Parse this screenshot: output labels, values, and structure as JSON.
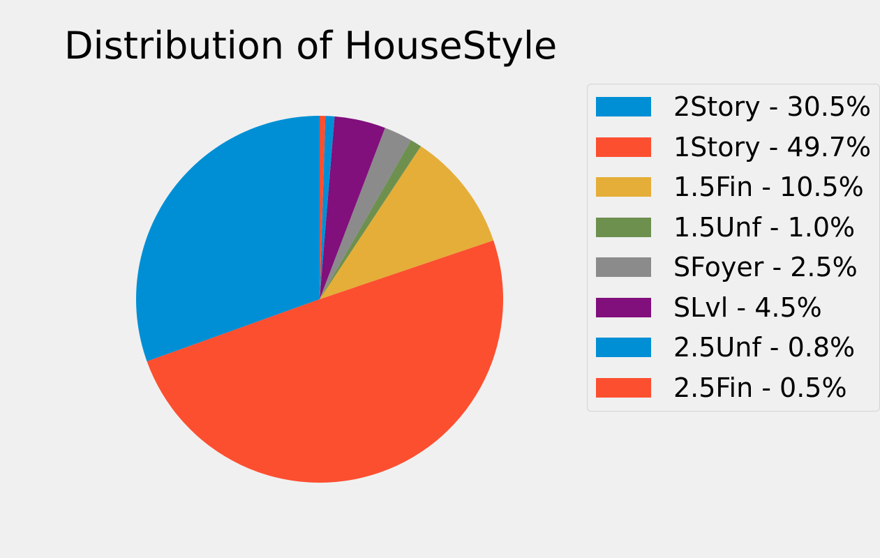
{
  "chart_data": {
    "type": "pie",
    "title": "Distribution of HouseStyle",
    "labels": [
      "2Story",
      "1Story",
      "1.5Fin",
      "1.5Unf",
      "SFoyer",
      "SLvl",
      "2.5Unf",
      "2.5Fin"
    ],
    "values": [
      30.5,
      49.7,
      10.5,
      1.0,
      2.5,
      4.5,
      0.8,
      0.5
    ],
    "legend_labels": [
      "2Story - 30.5%",
      "1Story - 49.7%",
      "1.5Fin - 10.5%",
      "1.5Unf - 1.0%",
      "SFoyer - 2.5%",
      "SLvl - 4.5%",
      "2.5Unf - 0.8%",
      "2.5Fin - 0.5%"
    ],
    "colors": [
      "#008fd5",
      "#fc4f30",
      "#e5ae38",
      "#6d904f",
      "#8b8b8b",
      "#810f7c",
      "#008fd5",
      "#fc4f30"
    ],
    "start_angle": 90,
    "direction": "counterclockwise",
    "legend_placement": "right"
  }
}
